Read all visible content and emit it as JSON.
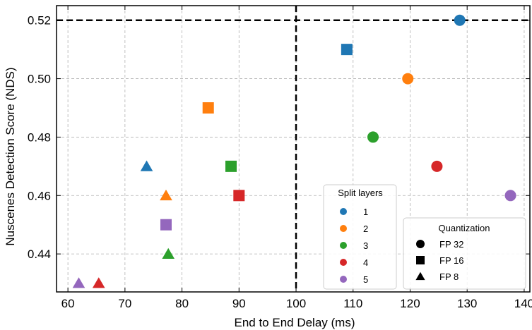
{
  "chart_data": {
    "type": "scatter",
    "title": "",
    "xlabel": "End to End Delay (ms)",
    "ylabel": "Nuscenes Detection Score (NDS)",
    "xlim": [
      58,
      141
    ],
    "ylim": [
      0.427,
      0.525
    ],
    "xticks": [
      60,
      70,
      80,
      90,
      100,
      110,
      120,
      130,
      140
    ],
    "xtick_labels": [
      "60",
      "70",
      "80",
      "90",
      "100",
      "110",
      "120",
      "130",
      "140"
    ],
    "yticks": [
      0.44,
      0.46,
      0.48,
      0.5,
      0.52
    ],
    "ytick_labels": [
      "0.44",
      "0.46",
      "0.48",
      "0.50",
      "0.52"
    ],
    "grid": true,
    "reference_lines": {
      "x": 100,
      "y": 0.52
    },
    "series_colors": {
      "1": "#1f77b4",
      "2": "#ff7f0e",
      "3": "#2ca02c",
      "4": "#d62728",
      "5": "#9467bd"
    },
    "points": [
      {
        "split": "1",
        "quant": "FP 32",
        "x": 128.7,
        "y": 0.52
      },
      {
        "split": "1",
        "quant": "FP 16",
        "x": 108.9,
        "y": 0.51
      },
      {
        "split": "1",
        "quant": "FP 8",
        "x": 73.8,
        "y": 0.47
      },
      {
        "split": "2",
        "quant": "FP 32",
        "x": 119.6,
        "y": 0.5
      },
      {
        "split": "2",
        "quant": "FP 16",
        "x": 84.6,
        "y": 0.49
      },
      {
        "split": "2",
        "quant": "FP 8",
        "x": 77.2,
        "y": 0.46
      },
      {
        "split": "3",
        "quant": "FP 32",
        "x": 113.5,
        "y": 0.48
      },
      {
        "split": "3",
        "quant": "FP 16",
        "x": 88.6,
        "y": 0.47
      },
      {
        "split": "3",
        "quant": "FP 8",
        "x": 77.6,
        "y": 0.44
      },
      {
        "split": "4",
        "quant": "FP 32",
        "x": 124.7,
        "y": 0.47
      },
      {
        "split": "4",
        "quant": "FP 16",
        "x": 90.0,
        "y": 0.46
      },
      {
        "split": "4",
        "quant": "FP 8",
        "x": 65.4,
        "y": 0.43
      },
      {
        "split": "5",
        "quant": "FP 32",
        "x": 137.6,
        "y": 0.46
      },
      {
        "split": "5",
        "quant": "FP 16",
        "x": 77.2,
        "y": 0.45
      },
      {
        "split": "5",
        "quant": "FP 8",
        "x": 61.9,
        "y": 0.43
      }
    ],
    "legend_split": {
      "title": "Split layers",
      "location": "lower-center-right",
      "entries": [
        {
          "label": "1",
          "color": "#1f77b4"
        },
        {
          "label": "2",
          "color": "#ff7f0e"
        },
        {
          "label": "3",
          "color": "#2ca02c"
        },
        {
          "label": "4",
          "color": "#d62728"
        },
        {
          "label": "5",
          "color": "#9467bd"
        }
      ]
    },
    "legend_quant": {
      "title": "Quantization",
      "location": "lower-right",
      "entries": [
        {
          "label": "FP 32",
          "marker": "circle"
        },
        {
          "label": "FP 16",
          "marker": "square"
        },
        {
          "label": "FP 8",
          "marker": "triangle"
        }
      ]
    }
  }
}
